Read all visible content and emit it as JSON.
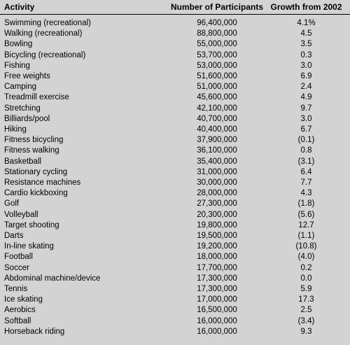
{
  "table": {
    "headers": {
      "activity": "Activity",
      "participants": "Number of Participants",
      "growth": "Growth from 2002"
    },
    "rows": [
      {
        "activity": "Swimming (recreational)",
        "participants": "96,400,000",
        "growth": "4.1%"
      },
      {
        "activity": "Walking (recreational)",
        "participants": "88,800,000",
        "growth": "4.5"
      },
      {
        "activity": "Bowling",
        "participants": "55,000,000",
        "growth": "3.5"
      },
      {
        "activity": "Bicycling (recreational)",
        "participants": "53,700,000",
        "growth": "0.3"
      },
      {
        "activity": "Fishing",
        "participants": "53,000,000",
        "growth": "3.0"
      },
      {
        "activity": "Free weights",
        "participants": "51,600,000",
        "growth": "6.9"
      },
      {
        "activity": "Camping",
        "participants": "51,000,000",
        "growth": "2.4"
      },
      {
        "activity": "Treadmill exercise",
        "participants": "45,600,000",
        "growth": "4.9"
      },
      {
        "activity": "Stretching",
        "participants": "42,100,000",
        "growth": "9.7"
      },
      {
        "activity": "Billiards/pool",
        "participants": "40,700,000",
        "growth": "3.0"
      },
      {
        "activity": "Hiking",
        "participants": "40,400,000",
        "growth": "6.7"
      },
      {
        "activity": "Fitness bicycling",
        "participants": "37,900,000",
        "growth": "(0.1)"
      },
      {
        "activity": "Fitness walking",
        "participants": "36,100,000",
        "growth": "0.8"
      },
      {
        "activity": "Basketball",
        "participants": "35,400,000",
        "growth": "(3.1)"
      },
      {
        "activity": "Stationary cycling",
        "participants": "31,000,000",
        "growth": "6.4"
      },
      {
        "activity": "Resistance machines",
        "participants": "30,000,000",
        "growth": "7.7"
      },
      {
        "activity": "Cardio kickboxing",
        "participants": "28,000,000",
        "growth": "4.3"
      },
      {
        "activity": "Golf",
        "participants": "27,300,000",
        "growth": "(1.8)"
      },
      {
        "activity": "Volleyball",
        "participants": "20,300,000",
        "growth": "(5.6)"
      },
      {
        "activity": "Target shooting",
        "participants": "19,800,000",
        "growth": "12.7"
      },
      {
        "activity": "Darts",
        "participants": "19,500,000",
        "growth": "(1.1)"
      },
      {
        "activity": "In-line skating",
        "participants": "19,200,000",
        "growth": "(10.8)"
      },
      {
        "activity": "Football",
        "participants": "18,000,000",
        "growth": "(4.0)"
      },
      {
        "activity": "Soccer",
        "participants": "17,700,000",
        "growth": "0.2"
      },
      {
        "activity": "Abdominal machine/device",
        "participants": "17,300,000",
        "growth": "0.0"
      },
      {
        "activity": "Tennis",
        "participants": "17,300,000",
        "growth": "5.9"
      },
      {
        "activity": "Ice skating",
        "participants": "17,000,000",
        "growth": "17.3"
      },
      {
        "activity": "Aerobics",
        "participants": "16,500,000",
        "growth": "2.5"
      },
      {
        "activity": "Softball",
        "participants": "16,000,000",
        "growth": "(3.4)"
      },
      {
        "activity": "Horseback riding",
        "participants": "16,000,000",
        "growth": "9.3"
      }
    ]
  },
  "colors": {
    "background": "#d3d3d3",
    "text": "#000000",
    "rule": "#000000"
  }
}
